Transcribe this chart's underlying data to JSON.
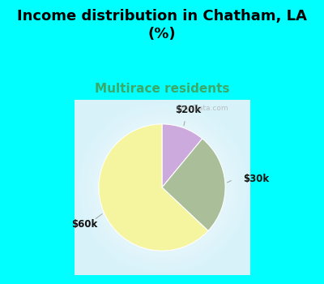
{
  "title": "Income distribution in Chatham, LA\n(%)",
  "subtitle": "Multirace residents",
  "title_color": "#000000",
  "subtitle_color": "#3aaa6a",
  "bg_top_color": "#00ffff",
  "chart_box_color": "#e0f5ee",
  "slices": [
    {
      "label": "$20k",
      "value": 11,
      "color": "#ccaadd"
    },
    {
      "label": "$30k",
      "value": 26,
      "color": "#aabf99"
    },
    {
      "label": "$60k",
      "value": 63,
      "color": "#f5f5a0"
    }
  ],
  "label_fontsize": 8.5,
  "title_fontsize": 13,
  "subtitle_fontsize": 11,
  "startangle": 90
}
